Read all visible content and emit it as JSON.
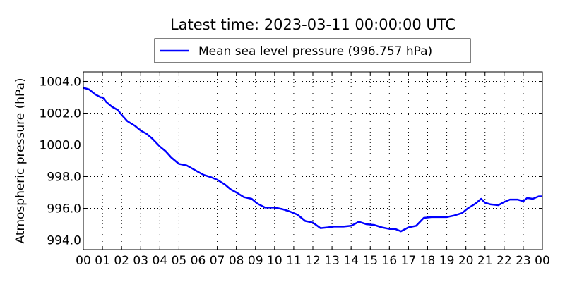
{
  "chart_data": {
    "type": "line",
    "title": "Latest time: 2023-03-11 00:00:00 UTC",
    "ylabel": "Atmospheric pressure (hPa)",
    "xlabel": "",
    "xlim": [
      0,
      24
    ],
    "ylim": [
      993.4,
      1004.6
    ],
    "x_ticks": [
      "00",
      "01",
      "02",
      "03",
      "04",
      "05",
      "06",
      "07",
      "08",
      "09",
      "10",
      "11",
      "12",
      "13",
      "14",
      "15",
      "16",
      "17",
      "18",
      "19",
      "20",
      "21",
      "22",
      "23",
      "00"
    ],
    "y_ticks": [
      {
        "value": 994.0,
        "label": "994.0"
      },
      {
        "value": 996.0,
        "label": "996.0"
      },
      {
        "value": 998.0,
        "label": "998.0"
      },
      {
        "value": 1000.0,
        "label": "1000.0"
      },
      {
        "value": 1002.0,
        "label": "1002.0"
      },
      {
        "value": 1004.0,
        "label": "1004.0"
      }
    ],
    "grid": true,
    "legend_position": "top-center",
    "series": [
      {
        "name": "Mean sea level pressure (996.757 hPa)",
        "color": "#0000ff",
        "points": [
          [
            0.0,
            1003.6
          ],
          [
            0.3,
            1003.5
          ],
          [
            0.6,
            1003.2
          ],
          [
            0.9,
            1003.0
          ],
          [
            1.0,
            1003.0
          ],
          [
            1.2,
            1002.7
          ],
          [
            1.5,
            1002.4
          ],
          [
            1.8,
            1002.2
          ],
          [
            2.0,
            1001.9
          ],
          [
            2.3,
            1001.5
          ],
          [
            2.7,
            1001.2
          ],
          [
            3.0,
            1000.9
          ],
          [
            3.3,
            1000.7
          ],
          [
            3.6,
            1000.4
          ],
          [
            4.0,
            999.9
          ],
          [
            4.3,
            999.6
          ],
          [
            4.6,
            999.2
          ],
          [
            5.0,
            998.8
          ],
          [
            5.4,
            998.7
          ],
          [
            5.7,
            998.5
          ],
          [
            6.0,
            998.3
          ],
          [
            6.3,
            998.1
          ],
          [
            6.7,
            997.95
          ],
          [
            7.0,
            997.8
          ],
          [
            7.4,
            997.5
          ],
          [
            7.7,
            997.2
          ],
          [
            8.0,
            997.0
          ],
          [
            8.4,
            996.7
          ],
          [
            8.8,
            996.6
          ],
          [
            9.1,
            996.3
          ],
          [
            9.5,
            996.05
          ],
          [
            10.0,
            996.05
          ],
          [
            10.4,
            995.95
          ],
          [
            10.8,
            995.8
          ],
          [
            11.2,
            995.6
          ],
          [
            11.6,
            995.2
          ],
          [
            12.0,
            995.1
          ],
          [
            12.4,
            994.75
          ],
          [
            12.8,
            994.8
          ],
          [
            13.1,
            994.85
          ],
          [
            13.6,
            994.85
          ],
          [
            14.0,
            994.9
          ],
          [
            14.4,
            995.15
          ],
          [
            14.8,
            995.0
          ],
          [
            15.2,
            994.95
          ],
          [
            15.6,
            994.8
          ],
          [
            16.0,
            994.7
          ],
          [
            16.3,
            994.7
          ],
          [
            16.6,
            994.55
          ],
          [
            17.0,
            994.8
          ],
          [
            17.4,
            994.9
          ],
          [
            17.8,
            995.4
          ],
          [
            18.2,
            995.45
          ],
          [
            18.6,
            995.45
          ],
          [
            19.0,
            995.45
          ],
          [
            19.4,
            995.55
          ],
          [
            19.8,
            995.7
          ],
          [
            20.1,
            996.0
          ],
          [
            20.5,
            996.3
          ],
          [
            20.8,
            996.6
          ],
          [
            21.0,
            996.35
          ],
          [
            21.3,
            996.25
          ],
          [
            21.7,
            996.2
          ],
          [
            22.0,
            996.4
          ],
          [
            22.3,
            996.55
          ],
          [
            22.7,
            996.55
          ],
          [
            23.0,
            996.45
          ],
          [
            23.2,
            996.65
          ],
          [
            23.5,
            996.6
          ],
          [
            23.8,
            996.75
          ],
          [
            24.0,
            996.757
          ]
        ]
      }
    ]
  }
}
